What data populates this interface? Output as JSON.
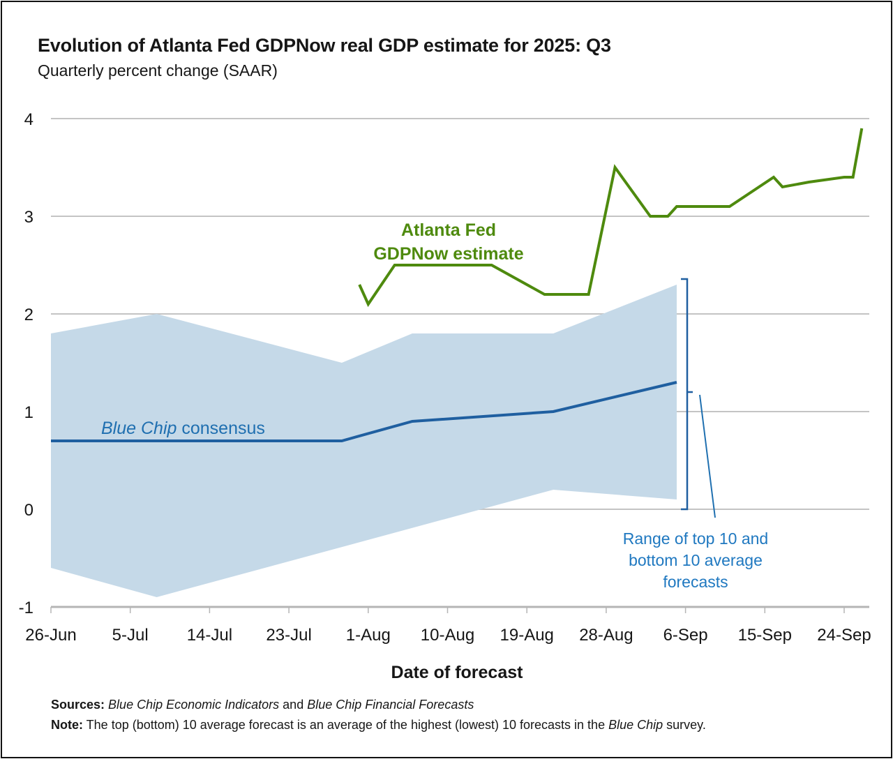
{
  "chart_data": {
    "type": "line",
    "title": "Evolution of Atlanta Fed GDPNow real GDP estimate for 2025: Q3",
    "subtitle": "Quarterly percent change (SAAR)",
    "xlabel": "Date of forecast",
    "ylabel": "",
    "x_unit": "days since 26-Jun",
    "xlim": [
      0,
      92
    ],
    "ylim": [
      -1,
      4
    ],
    "yticks": [
      4,
      3,
      2,
      1,
      0,
      -1
    ],
    "xticks": [
      {
        "day": 0,
        "label": "26-Jun"
      },
      {
        "day": 9,
        "label": "5-Jul"
      },
      {
        "day": 18,
        "label": "14-Jul"
      },
      {
        "day": 27,
        "label": "23-Jul"
      },
      {
        "day": 36,
        "label": "1-Aug"
      },
      {
        "day": 45,
        "label": "10-Aug"
      },
      {
        "day": 54,
        "label": "19-Aug"
      },
      {
        "day": 63,
        "label": "28-Aug"
      },
      {
        "day": 72,
        "label": "6-Sep"
      },
      {
        "day": 81,
        "label": "15-Sep"
      },
      {
        "day": 90,
        "label": "24-Sep"
      }
    ],
    "grid": true,
    "series": [
      {
        "name": "Atlanta Fed GDPNow estimate",
        "color": "#4e8a0e",
        "x": [
          35,
          36,
          39,
          50,
          56,
          61,
          64,
          68,
          70,
          71,
          77,
          82,
          83,
          86,
          90,
          91,
          92
        ],
        "y": [
          2.3,
          2.1,
          2.5,
          2.5,
          2.2,
          2.2,
          3.5,
          3.0,
          3.0,
          3.1,
          3.1,
          3.4,
          3.3,
          3.35,
          3.4,
          3.4,
          3.9
        ]
      },
      {
        "name": "Blue Chip consensus",
        "color": "#1f5fa0",
        "x": [
          0,
          33,
          41,
          57,
          71
        ],
        "y": [
          0.7,
          0.7,
          0.9,
          1.0,
          1.3
        ]
      }
    ],
    "band": {
      "name": "Range of top 10 and bottom 10 average forecasts",
      "color": "#c5d9e8",
      "upper": {
        "x": [
          0,
          12,
          33,
          41,
          57,
          71
        ],
        "y": [
          1.8,
          2.0,
          1.5,
          1.8,
          1.8,
          2.3
        ]
      },
      "lower": {
        "x": [
          0,
          12,
          57,
          71
        ],
        "y": [
          -0.6,
          -0.9,
          0.2,
          0.1
        ]
      }
    },
    "annotations": {
      "gdpnow_line1": "Atlanta Fed",
      "gdpnow_line2": "GDPNow estimate",
      "bluechip_italic": "Blue Chip",
      "bluechip_rest": " consensus",
      "range_line1": "Range of top 10 and",
      "range_line2": "bottom 10 average",
      "range_line3": "forecasts"
    }
  },
  "footnotes": {
    "sources_label": "Sources:",
    "sources_italic1": "Blue Chip Economic Indicators",
    "sources_and": " and ",
    "sources_italic2": "Blue Chip Financial Forecasts",
    "note_label": "Note:",
    "note_text1": " The top (bottom) 10 average forecast is an average of the highest (lowest) 10 forecasts in the ",
    "note_italic": "Blue Chip",
    "note_text2": " survey."
  }
}
